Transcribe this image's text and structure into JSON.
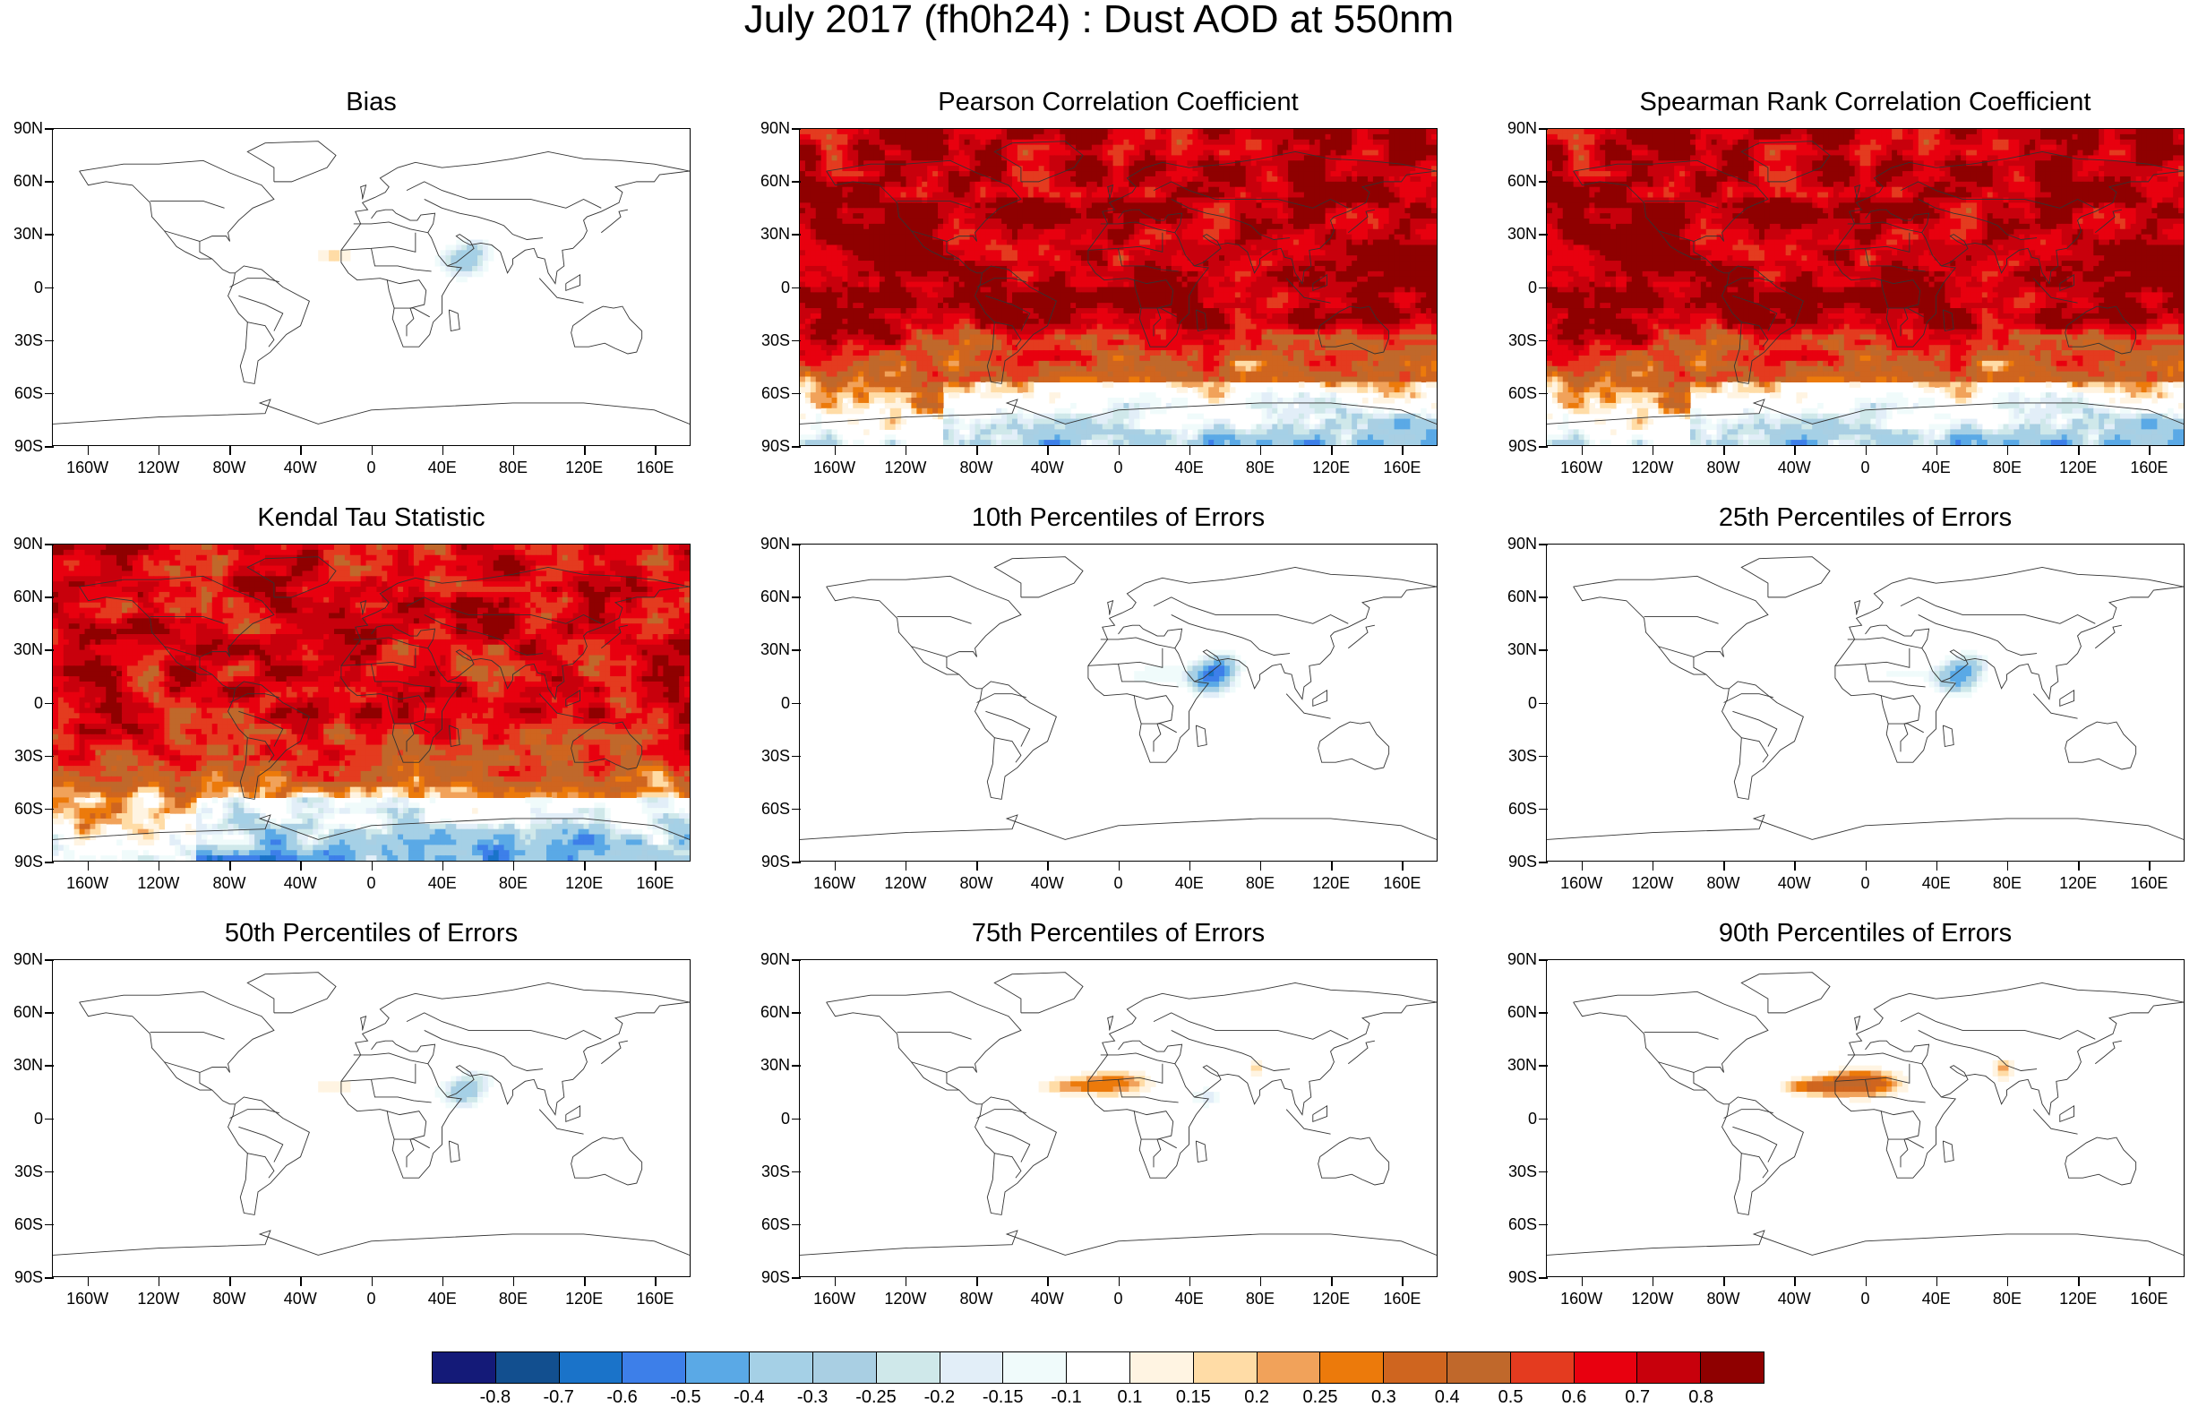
{
  "main_title": "July 2017 (fh0h24) : Dust AOD at 550nm",
  "lat_labels": [
    "90N",
    "60N",
    "30N",
    "0",
    "30S",
    "60S",
    "90S"
  ],
  "lon_labels": [
    "160W",
    "120W",
    "80W",
    "40W",
    "0",
    "40E",
    "80E",
    "120E",
    "160E"
  ],
  "panels": [
    {
      "title": "Bias",
      "pattern": "bias"
    },
    {
      "title": "Pearson Correlation Coefficient",
      "pattern": "corr_high"
    },
    {
      "title": "Spearman Rank Correlation Coefficient",
      "pattern": "corr_high"
    },
    {
      "title": "Kendal Tau Statistic",
      "pattern": "corr_mid"
    },
    {
      "title": "10th Percentiles of Errors",
      "pattern": "p10"
    },
    {
      "title": "25th Percentiles of Errors",
      "pattern": "p25"
    },
    {
      "title": "50th Percentiles of Errors",
      "pattern": "p50"
    },
    {
      "title": "75th Percentiles of Errors",
      "pattern": "p75"
    },
    {
      "title": "90th Percentiles of Errors",
      "pattern": "p90"
    }
  ],
  "colorbar": {
    "labels": [
      "-0.8",
      "-0.7",
      "-0.6",
      "-0.5",
      "-0.4",
      "-0.3",
      "-0.25",
      "-0.2",
      "-0.15",
      "-0.1",
      "0.1",
      "0.15",
      "0.2",
      "0.25",
      "0.3",
      "0.4",
      "0.5",
      "0.6",
      "0.7",
      "0.8"
    ],
    "colors": [
      "#141a78",
      "#124f8f",
      "#1a73c9",
      "#3d7fe9",
      "#5aa9e6",
      "#a5d0e6",
      "#a9cfe3",
      "#cfe8ea",
      "#e2eef8",
      "#f0fbfb",
      "#ffffff",
      "#fff4e2",
      "#ffdca6",
      "#f1a25a",
      "#ec7a0b",
      "#cf651f",
      "#c0682b",
      "#e43b1f",
      "#e8000f",
      "#c8000c",
      "#8f0000"
    ]
  }
}
